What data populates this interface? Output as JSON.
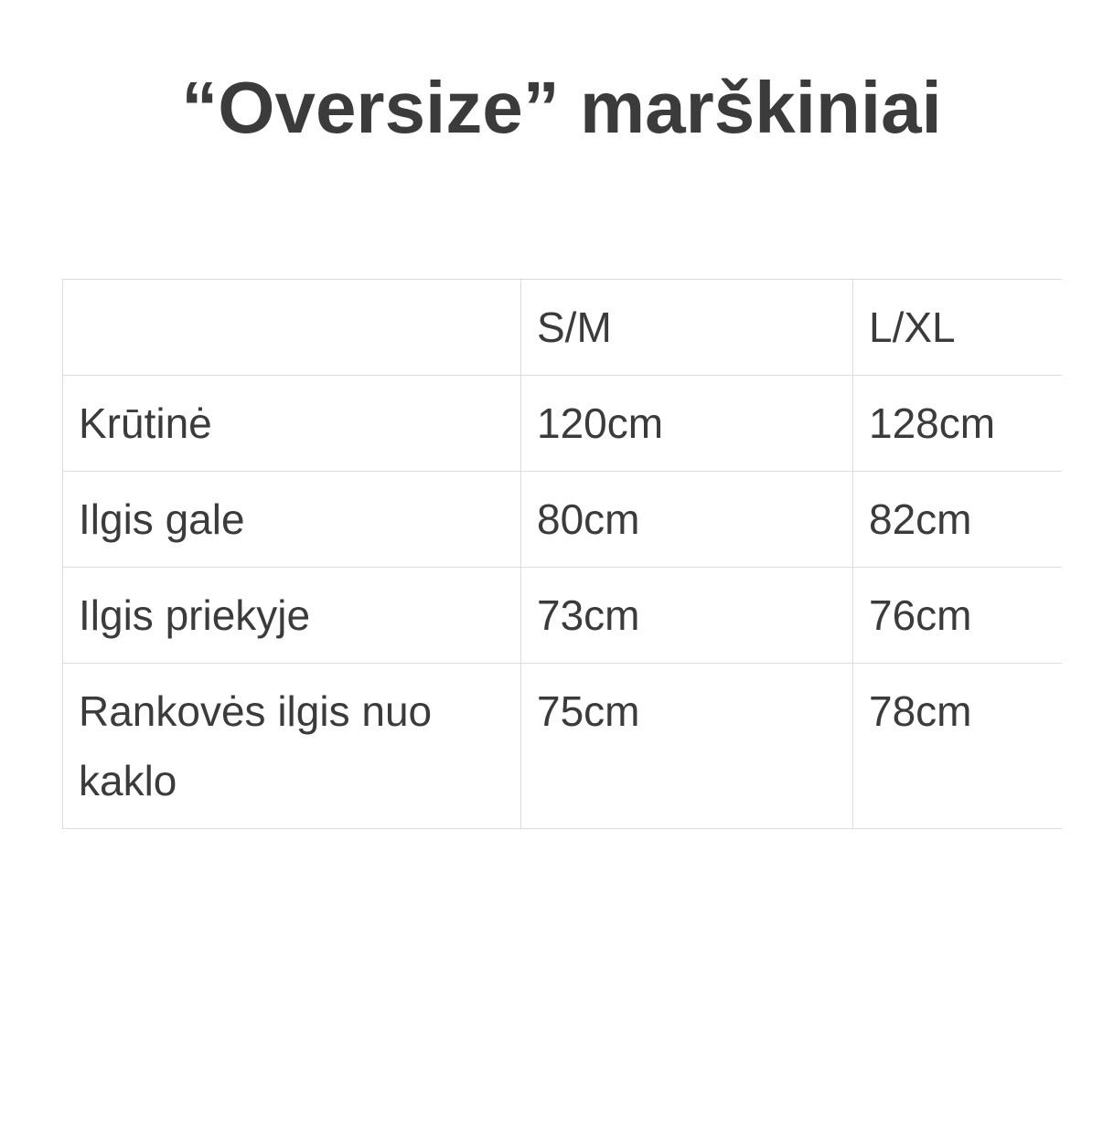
{
  "title": "“Oversize” marškiniai",
  "table": {
    "headers": [
      "",
      "S/M",
      "L/XL"
    ],
    "rows": [
      [
        "Krūtinė",
        "120cm",
        "128cm"
      ],
      [
        "Ilgis gale",
        "80cm",
        "82cm"
      ],
      [
        "Ilgis priekyje",
        "73cm",
        "76cm"
      ],
      [
        "Rankovės ilgis nuo kaklo",
        "75cm",
        "78cm"
      ]
    ]
  }
}
